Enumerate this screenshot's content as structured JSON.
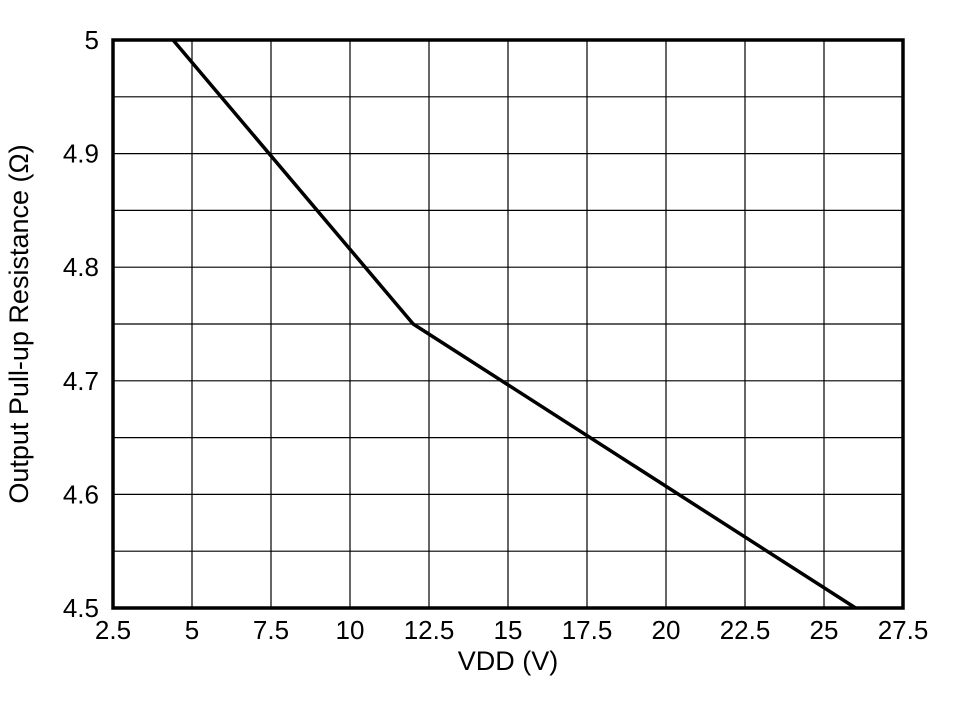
{
  "chart_data": {
    "type": "line",
    "title": "",
    "xlabel": "VDD (V)",
    "ylabel": "Output Pull-up Resistance (Ω)",
    "xlim": [
      2.5,
      27.5
    ],
    "ylim": [
      4.5,
      5.0
    ],
    "grid": {
      "on": true,
      "x_step": 2.5,
      "y_step": 0.05
    },
    "legend": null,
    "xticks": [
      {
        "v": 2.5,
        "label": "2.5"
      },
      {
        "v": 5,
        "label": "5"
      },
      {
        "v": 7.5,
        "label": "7.5"
      },
      {
        "v": 10,
        "label": "10"
      },
      {
        "v": 12.5,
        "label": "12.5"
      },
      {
        "v": 15,
        "label": "15"
      },
      {
        "v": 17.5,
        "label": "17.5"
      },
      {
        "v": 20,
        "label": "20"
      },
      {
        "v": 22.5,
        "label": "22.5"
      },
      {
        "v": 25,
        "label": "25"
      },
      {
        "v": 27.5,
        "label": "27.5"
      }
    ],
    "yticks": [
      {
        "v": 4.5,
        "label": "4.5"
      },
      {
        "v": 4.6,
        "label": "4.6"
      },
      {
        "v": 4.7,
        "label": "4.7"
      },
      {
        "v": 4.8,
        "label": "4.8"
      },
      {
        "v": 4.9,
        "label": "4.9"
      },
      {
        "v": 5.0,
        "label": "5"
      }
    ],
    "series": [
      {
        "name": "output-pullup-resistance",
        "color": "#000000",
        "width": 3.5,
        "points": [
          [
            4.4,
            5.0
          ],
          [
            12.0,
            4.75
          ],
          [
            26.0,
            4.5
          ]
        ]
      }
    ],
    "sampled_readings": {
      "x": [
        5,
        7.5,
        10,
        12,
        12.5,
        15,
        17.5,
        20,
        22.5,
        25,
        26
      ],
      "y": [
        4.98,
        4.9,
        4.82,
        4.75,
        4.74,
        4.7,
        4.65,
        4.61,
        4.56,
        4.52,
        4.5
      ]
    }
  },
  "colors": {
    "background": "#ffffff",
    "axis": "#000000",
    "grid": "#000000",
    "line": "#000000",
    "text": "#000000"
  }
}
